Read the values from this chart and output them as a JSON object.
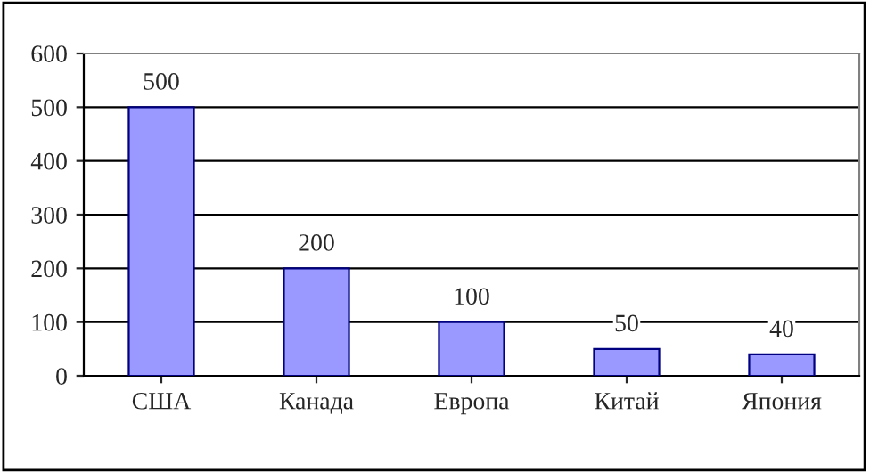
{
  "chart_data": {
    "type": "bar",
    "categories": [
      "США",
      "Канада",
      "Европа",
      "Китай",
      "Япония"
    ],
    "values": [
      500,
      200,
      100,
      50,
      40
    ],
    "color": "#9999ff",
    "ylim": [
      0,
      600
    ],
    "yticks": [
      0,
      100,
      200,
      300,
      400,
      500,
      600
    ],
    "grid": "y",
    "data_labels": true
  }
}
